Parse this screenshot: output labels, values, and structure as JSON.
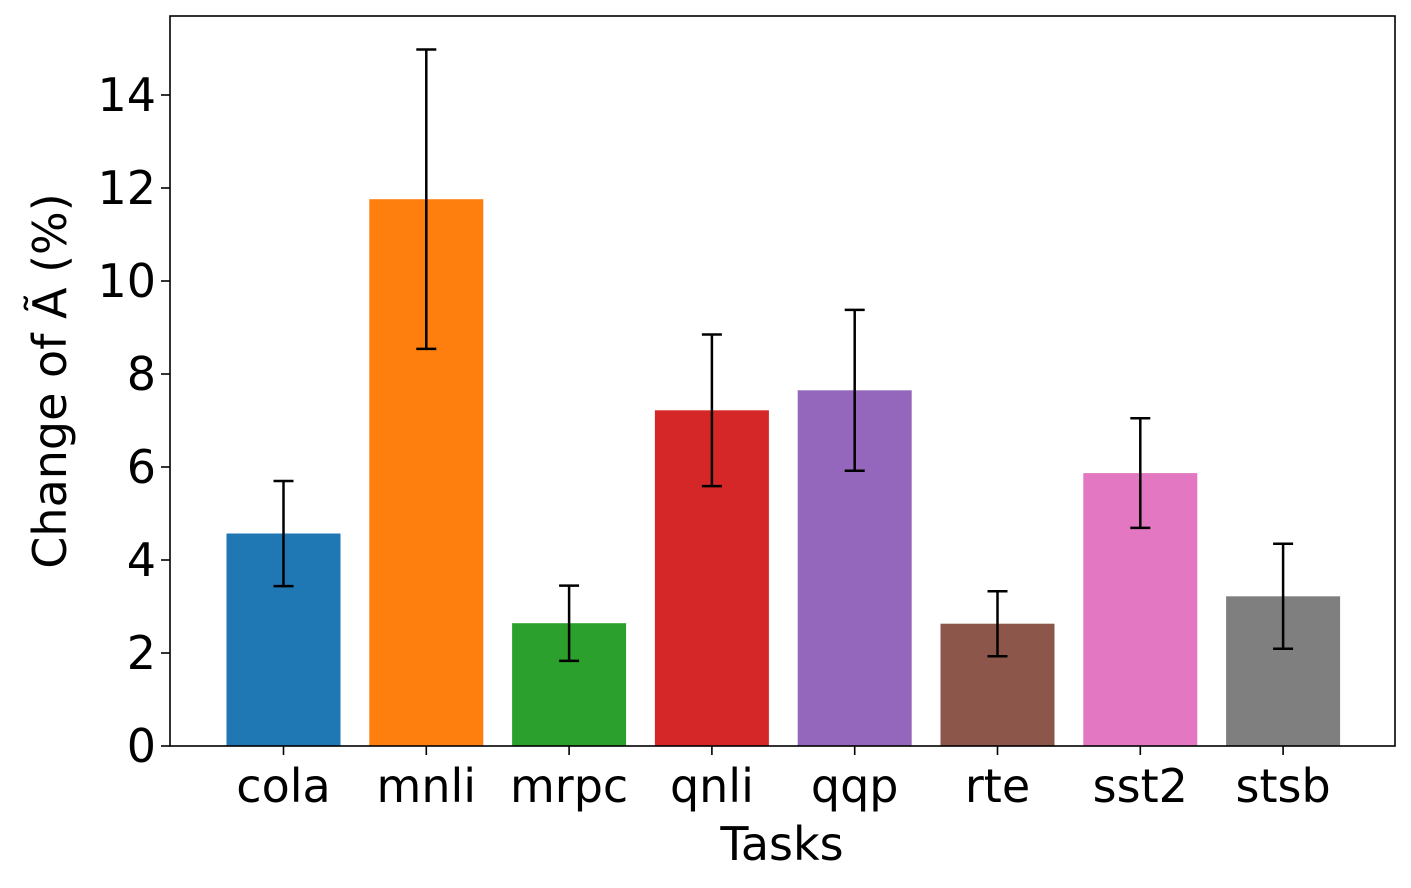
{
  "chart_data": {
    "type": "bar",
    "title": "",
    "xlabel": "Tasks",
    "ylabel": "Change of Ã (%)",
    "categories": [
      "cola",
      "mnli",
      "mrpc",
      "qnli",
      "qqp",
      "rte",
      "sst2",
      "stsb"
    ],
    "values": [
      4.57,
      11.76,
      2.64,
      7.22,
      7.65,
      2.63,
      5.87,
      3.22
    ],
    "errors": [
      1.13,
      3.22,
      0.81,
      1.63,
      1.73,
      0.7,
      1.18,
      1.13
    ],
    "colors": [
      "#1f77b4",
      "#ff7f0e",
      "#2ca02c",
      "#d62728",
      "#9467bd",
      "#8c564b",
      "#e377c2",
      "#7f7f7f"
    ],
    "yticks": [
      "0",
      "2",
      "4",
      "6",
      "8",
      "10",
      "12",
      "14"
    ],
    "ylim": [
      0,
      15.7
    ],
    "grid": false
  }
}
